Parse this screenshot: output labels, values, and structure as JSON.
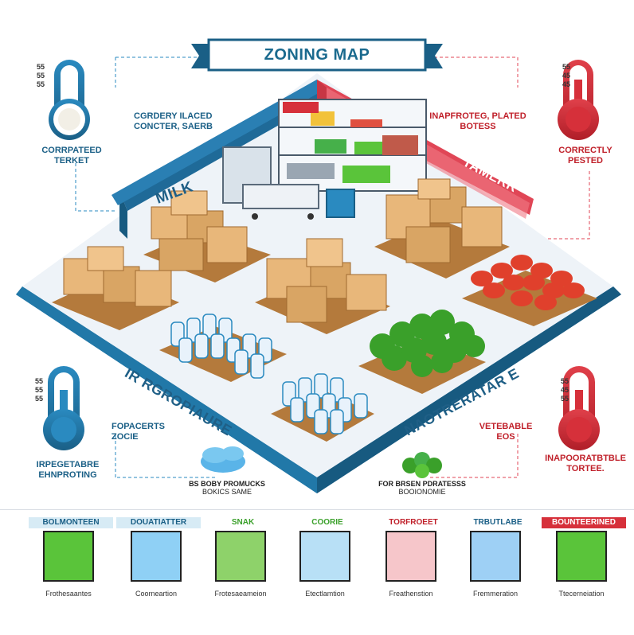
{
  "title": "ZONING MAP",
  "zones": {
    "milk": "MILK",
    "tame": "TAMERR",
    "left_floor": "IR RGROPIAURE",
    "right_floor": "NAOTRERATAR E"
  },
  "callouts": {
    "top_left_thermo": {
      "scale": [
        "55",
        "55",
        "55"
      ],
      "label": "CORRPATEED TERKET"
    },
    "top_center_left": {
      "label": "CGRDERY ILACED CONCTER, SAERB"
    },
    "top_center_right": {
      "label": "INAPFROTEG, PLATED BOTESS"
    },
    "top_right_thermo": {
      "scale": [
        "55",
        "45",
        "45"
      ],
      "label": "CORRECTLY PESTED"
    },
    "mid_left_thermo": {
      "scale": [
        "55",
        "55",
        "55"
      ],
      "label": "IRPEGETABRE EHNPROTING"
    },
    "mid_center_left": {
      "label": "FOPACERTS ZOCIE"
    },
    "mid_center_right": {
      "label": "VETEBABLE EOS"
    },
    "mid_right_thermo": {
      "scale": [
        "55",
        "45",
        "55"
      ],
      "label": "INAPOORATBTBLE TORTEE."
    },
    "bottom_left": {
      "line1": "BS BOBY PROMUCKS",
      "line2": "BOKICS SAME"
    },
    "bottom_right": {
      "line1": "FOR BRSEN PDRATESSS",
      "line2": "BOOIONOMIE"
    }
  },
  "legend": [
    {
      "head": "BOLMONTEEN",
      "head_color": "#1a5f86",
      "head_bg": "#d7ebf5",
      "swatch": "#5ac43a",
      "desc": "Frothesaantes"
    },
    {
      "head": "DOUATIATTER",
      "head_color": "#1a5f86",
      "head_bg": "#d7ebf5",
      "swatch": "#8fd0f5",
      "desc": "Coorneartion"
    },
    {
      "head": "SNAK",
      "head_color": "#3aa02a",
      "head_bg": "#ffffff",
      "swatch": "#8ed26a",
      "desc": "Frotesaeameion"
    },
    {
      "head": "COORIE",
      "head_color": "#3aa02a",
      "head_bg": "#ffffff",
      "swatch": "#b8e0f6",
      "desc": "Etectlamtion"
    },
    {
      "head": "TORFROEET",
      "head_color": "#c0202a",
      "head_bg": "#ffffff",
      "swatch": "#f6c6ca",
      "desc": "Freathenstion"
    },
    {
      "head": "TRBUTLABE",
      "head_color": "#1a5f86",
      "head_bg": "#ffffff",
      "swatch": "#9ed0f5",
      "desc": "Fremmeration"
    },
    {
      "head": "BOUNTEERINED",
      "head_color": "#ffffff",
      "head_bg": "#d6303a",
      "swatch": "#5ac43a",
      "desc": "Ttecerneiation"
    }
  ],
  "colors": {
    "wall_blue": "#1f6a98",
    "wall_red": "#e04656",
    "floor": "#eef3f8",
    "pallet": "#b47a3c",
    "box": "#e8b77a"
  }
}
